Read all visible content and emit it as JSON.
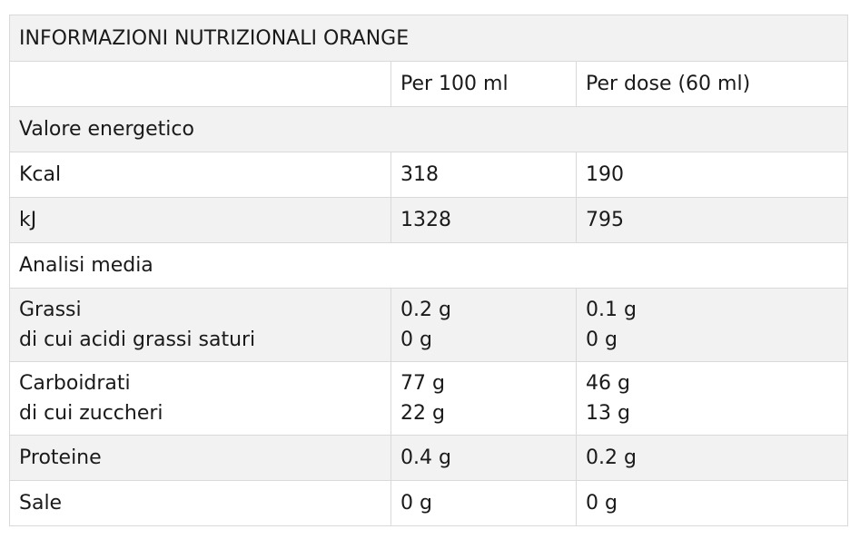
{
  "table": {
    "title": "INFORMAZIONI NUTRIZIONALI ORANGE",
    "header": [
      "",
      "Per 100 ml",
      "Per dose (60 ml)"
    ],
    "sections": {
      "energy": "Valore energetico",
      "analysis": "Analisi media"
    },
    "rows": {
      "kcal": [
        "Kcal",
        "318",
        "190"
      ],
      "kj": [
        "kJ",
        "1328",
        "795"
      ],
      "grassi": {
        "label": [
          "Grassi",
          "di cui acidi grassi saturi"
        ],
        "per100": [
          "0.2 g",
          "0 g"
        ],
        "perdose": [
          "0.1 g",
          "0 g"
        ]
      },
      "carboidrati": {
        "label": [
          "Carboidrati",
          "di cui zuccheri"
        ],
        "per100": [
          "77 g",
          "22 g"
        ],
        "perdose": [
          "46 g",
          "13 g"
        ]
      },
      "proteine": [
        "Proteine",
        "0.4 g",
        "0.2 g"
      ],
      "sale": [
        "Sale",
        "0 g",
        "0 g"
      ]
    }
  }
}
